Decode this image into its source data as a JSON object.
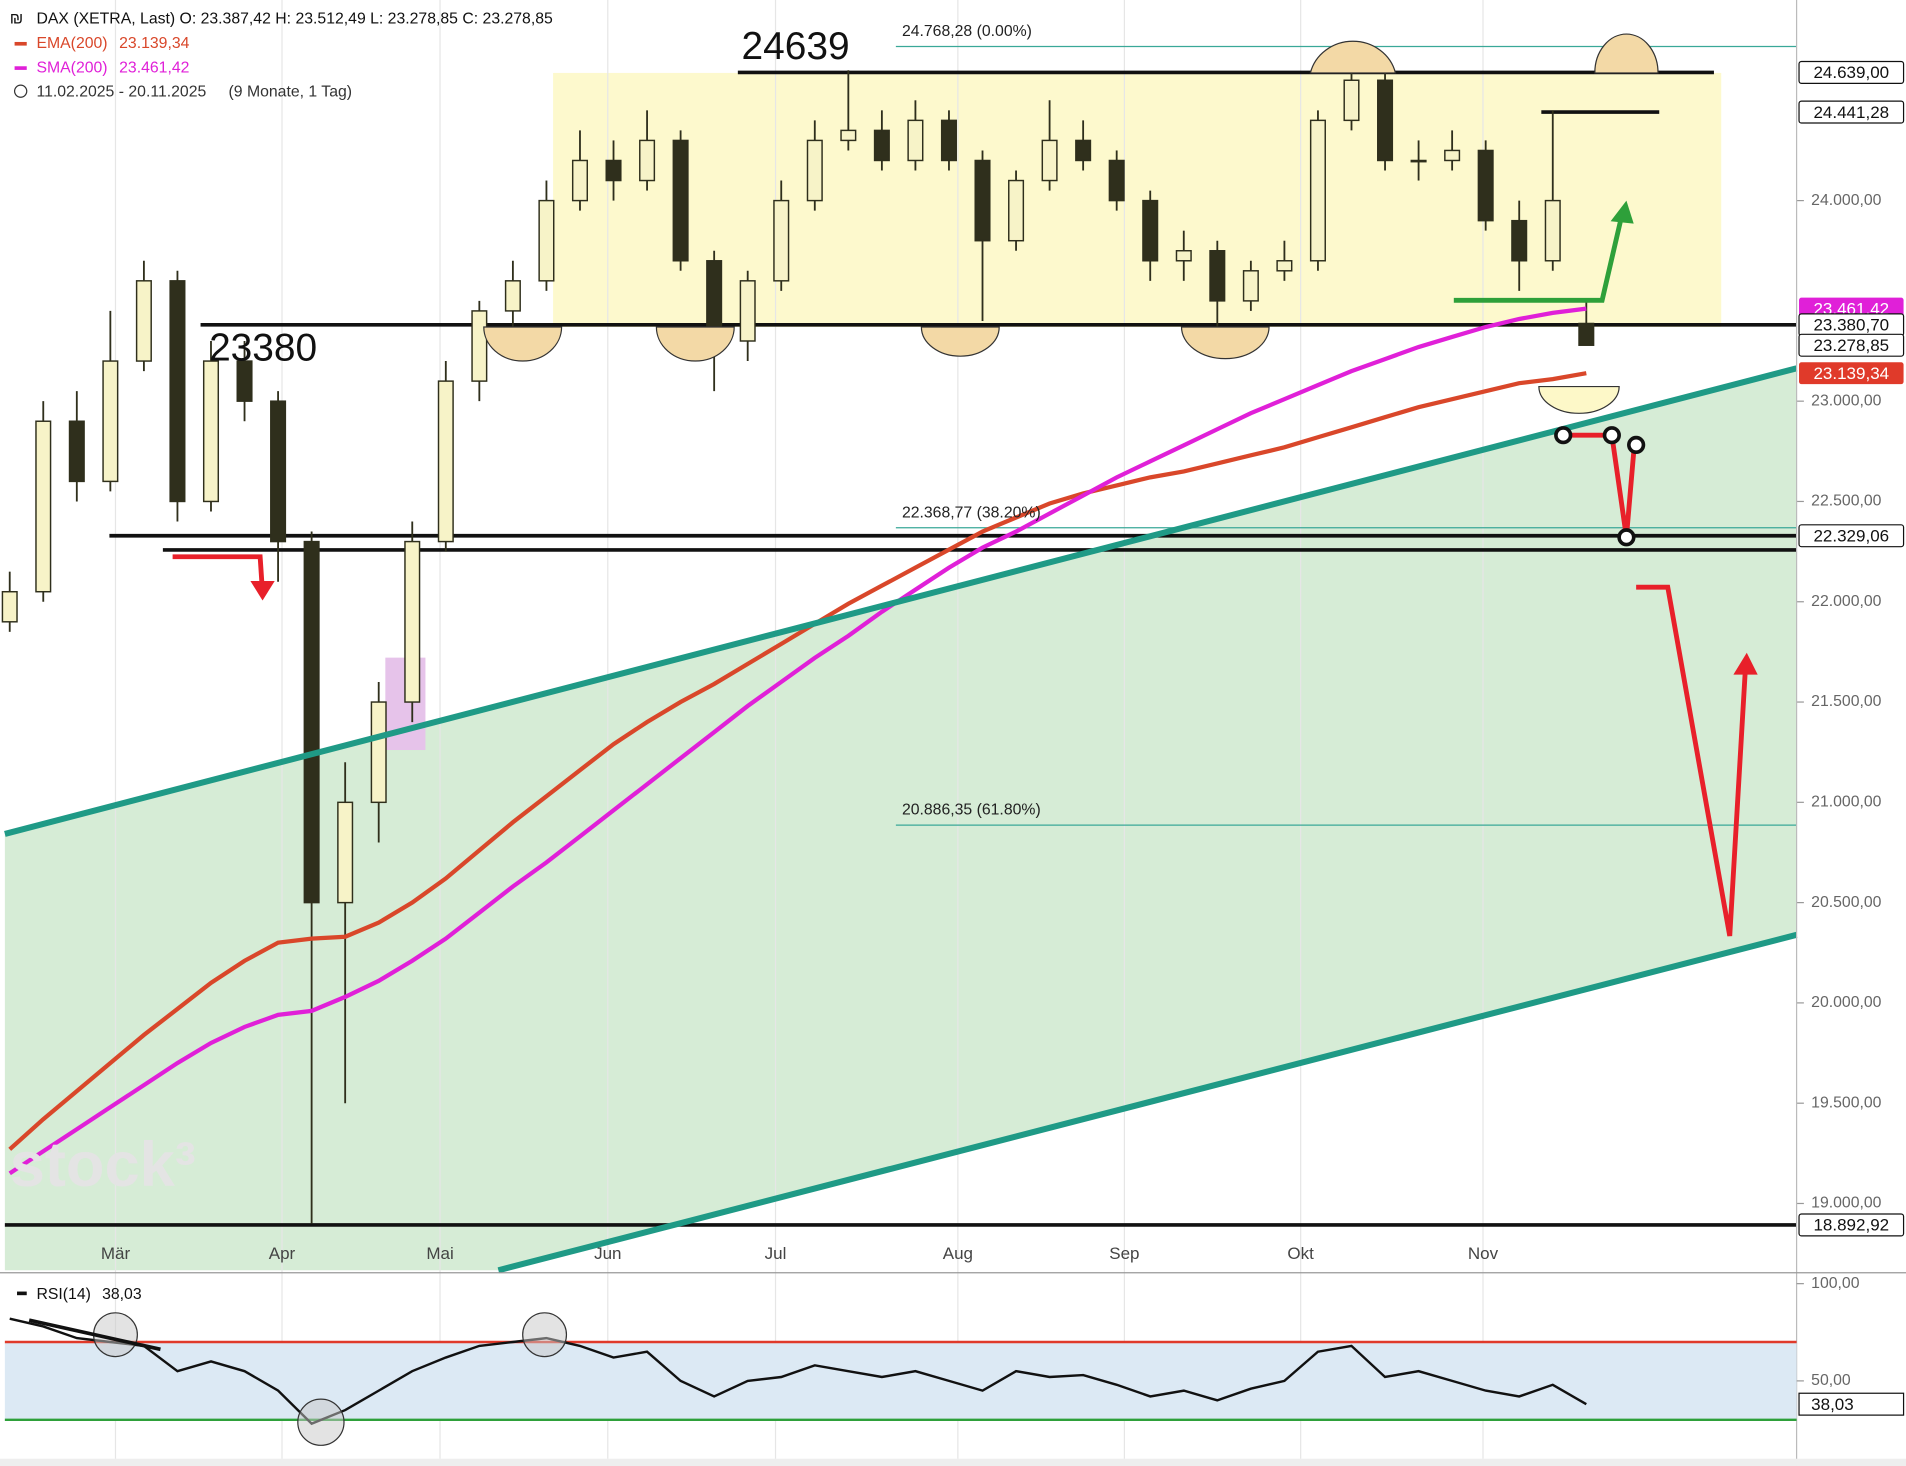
{
  "chart_data": {
    "type": "candlestick",
    "title": "DAX (XETRA, Last)  O: 23.387,42  H: 23.512,49  L: 23.278,85  C: 23.278,85",
    "period": "11.02.2025 - 20.11.2025",
    "period_note": "(9 Monate, 1 Tag)",
    "watermark": "stock³",
    "ohlc": [
      [
        21900,
        22150,
        21850,
        22050
      ],
      [
        22050,
        23000,
        22000,
        22900
      ],
      [
        22900,
        23050,
        22500,
        22600
      ],
      [
        22600,
        23450,
        22550,
        23200
      ],
      [
        23200,
        23700,
        23150,
        23600
      ],
      [
        23600,
        23650,
        22400,
        22500
      ],
      [
        22500,
        23300,
        22450,
        23200
      ],
      [
        23200,
        23300,
        22900,
        23000
      ],
      [
        23000,
        23050,
        22100,
        22300
      ],
      [
        22300,
        22350,
        18900,
        20500
      ],
      [
        20500,
        21200,
        19500,
        21000
      ],
      [
        21000,
        21600,
        20800,
        21500
      ],
      [
        21500,
        22400,
        21400,
        22300
      ],
      [
        22300,
        23200,
        22250,
        23100
      ],
      [
        23100,
        23500,
        23000,
        23450
      ],
      [
        23450,
        23700,
        23350,
        23600
      ],
      [
        23600,
        24100,
        23550,
        24000
      ],
      [
        24000,
        24350,
        23950,
        24200
      ],
      [
        24200,
        24300,
        24000,
        24100
      ],
      [
        24100,
        24450,
        24050,
        24300
      ],
      [
        24300,
        24350,
        23650,
        23700
      ],
      [
        23700,
        23750,
        23050,
        23300
      ],
      [
        23300,
        23650,
        23200,
        23600
      ],
      [
        23600,
        24100,
        23550,
        24000
      ],
      [
        24000,
        24400,
        23950,
        24300
      ],
      [
        24300,
        24650,
        24250,
        24350
      ],
      [
        24350,
        24450,
        24150,
        24200
      ],
      [
        24200,
        24500,
        24150,
        24400
      ],
      [
        24400,
        24450,
        24150,
        24200
      ],
      [
        24200,
        24250,
        23400,
        23800
      ],
      [
        23800,
        24150,
        23750,
        24100
      ],
      [
        24100,
        24500,
        24050,
        24300
      ],
      [
        24300,
        24400,
        24150,
        24200
      ],
      [
        24200,
        24250,
        23950,
        24000
      ],
      [
        24000,
        24050,
        23600,
        23700
      ],
      [
        23700,
        23850,
        23600,
        23750
      ],
      [
        23750,
        23800,
        23300,
        23500
      ],
      [
        23500,
        23700,
        23450,
        23650
      ],
      [
        23650,
        23800,
        23600,
        23700
      ],
      [
        23700,
        24450,
        23650,
        24400
      ],
      [
        24400,
        24750,
        24350,
        24600
      ],
      [
        24600,
        24650,
        24150,
        24200
      ],
      [
        24200,
        24300,
        24100,
        24200
      ],
      [
        24200,
        24350,
        24150,
        24250
      ],
      [
        24250,
        24300,
        23850,
        23900
      ],
      [
        23900,
        24000,
        23550,
        23700
      ],
      [
        23700,
        24450,
        23650,
        24000
      ],
      [
        23387.42,
        23512.49,
        23278.85,
        23278.85
      ]
    ],
    "up_color": "#f7f3c8",
    "down_color": "#2f2f1c",
    "series": [
      {
        "name": "EMA(200)",
        "color": "#d9472a",
        "value_label": "23.139,34",
        "values": [
          19270,
          19420,
          19560,
          19700,
          19840,
          19970,
          20100,
          20210,
          20300,
          20320,
          20330,
          20400,
          20500,
          20620,
          20760,
          20900,
          21030,
          21160,
          21290,
          21400,
          21500,
          21590,
          21690,
          21790,
          21890,
          21990,
          22080,
          22170,
          22260,
          22350,
          22420,
          22490,
          22540,
          22580,
          22620,
          22650,
          22690,
          22730,
          22770,
          22820,
          22870,
          22920,
          22970,
          23010,
          23050,
          23090,
          23110,
          23139.34
        ]
      },
      {
        "name": "SMA(200)",
        "color": "#e020d8",
        "value_label": "23.461,42",
        "values": [
          19150,
          19260,
          19370,
          19480,
          19590,
          19700,
          19800,
          19880,
          19940,
          19960,
          20030,
          20110,
          20210,
          20320,
          20450,
          20580,
          20700,
          20830,
          20960,
          21090,
          21220,
          21350,
          21480,
          21600,
          21720,
          21830,
          21950,
          22060,
          22170,
          22270,
          22350,
          22440,
          22530,
          22620,
          22700,
          22780,
          22860,
          22940,
          23010,
          23080,
          23150,
          23210,
          23270,
          23320,
          23370,
          23410,
          23440,
          23461.42
        ]
      }
    ],
    "ylim": [
      18667,
      25000
    ],
    "yticks": [
      {
        "value": 19000,
        "label": "19.000,00"
      },
      {
        "value": 19500,
        "label": "19.500,00"
      },
      {
        "value": 20000,
        "label": "20.000,00"
      },
      {
        "value": 20500,
        "label": "20.500,00"
      },
      {
        "value": 21000,
        "label": "21.000,00"
      },
      {
        "value": 21500,
        "label": "21.500,00"
      },
      {
        "value": 22000,
        "label": "22.000,00"
      },
      {
        "value": 22500,
        "label": "22.500,00"
      },
      {
        "value": 23000,
        "label": "23.000,00"
      },
      {
        "value": 24000,
        "label": "24.000,00"
      }
    ],
    "months": [
      "Mär",
      "Apr",
      "Mai",
      "Jun",
      "Jul",
      "Aug",
      "Sep",
      "Okt",
      "Nov"
    ],
    "price_tags": [
      {
        "value": 24639,
        "label": "24.639,00",
        "color": "#ffffff"
      },
      {
        "value": 24441.28,
        "label": "24.441,28",
        "color": "#ffffff"
      },
      {
        "value": 23461.42,
        "label": "23.461,42",
        "color": "#e020d8"
      },
      {
        "value": 23380.7,
        "label": "23.380,70",
        "color": "#ffffff"
      },
      {
        "value": 23278.85,
        "label": "23.278,85",
        "color": "#ffffff"
      },
      {
        "value": 23139.34,
        "label": "23.139,34",
        "color": "#e03a2a"
      },
      {
        "value": 22329.06,
        "label": "22.329,06",
        "color": "#ffffff"
      },
      {
        "value": 18892.92,
        "label": "18.892,92",
        "color": "#ffffff"
      }
    ],
    "levels": [
      24639,
      24441.28,
      23380.7,
      22329.06,
      22258.38,
      18892.92
    ],
    "fib_levels": [
      {
        "value": 24768.28,
        "label": "24.768,28 (0.00%)"
      },
      {
        "value": 22368.77,
        "label": "22.368,77 (38.20%)"
      },
      {
        "value": 20886.35,
        "label": "20.886,35 (61.80%)"
      }
    ],
    "annotations": [
      "24639",
      "23380"
    ],
    "rsi": {
      "name": "RSI(14)",
      "color": "#111111",
      "value_label": "38,03",
      "values": [
        82,
        78,
        72,
        70,
        68,
        55,
        60,
        55,
        45,
        28,
        35,
        45,
        55,
        62,
        68,
        70,
        72,
        68,
        62,
        65,
        50,
        42,
        50,
        52,
        58,
        55,
        52,
        55,
        50,
        45,
        55,
        52,
        53,
        48,
        42,
        45,
        40,
        46,
        50,
        65,
        68,
        52,
        55,
        50,
        45,
        42,
        48,
        38.03
      ],
      "ylim": [
        10,
        105
      ],
      "yticks": [
        {
          "value": 100,
          "label": "100,00"
        },
        {
          "value": 50,
          "label": "50,00"
        }
      ],
      "overbought": 70,
      "oversold": 30
    }
  }
}
